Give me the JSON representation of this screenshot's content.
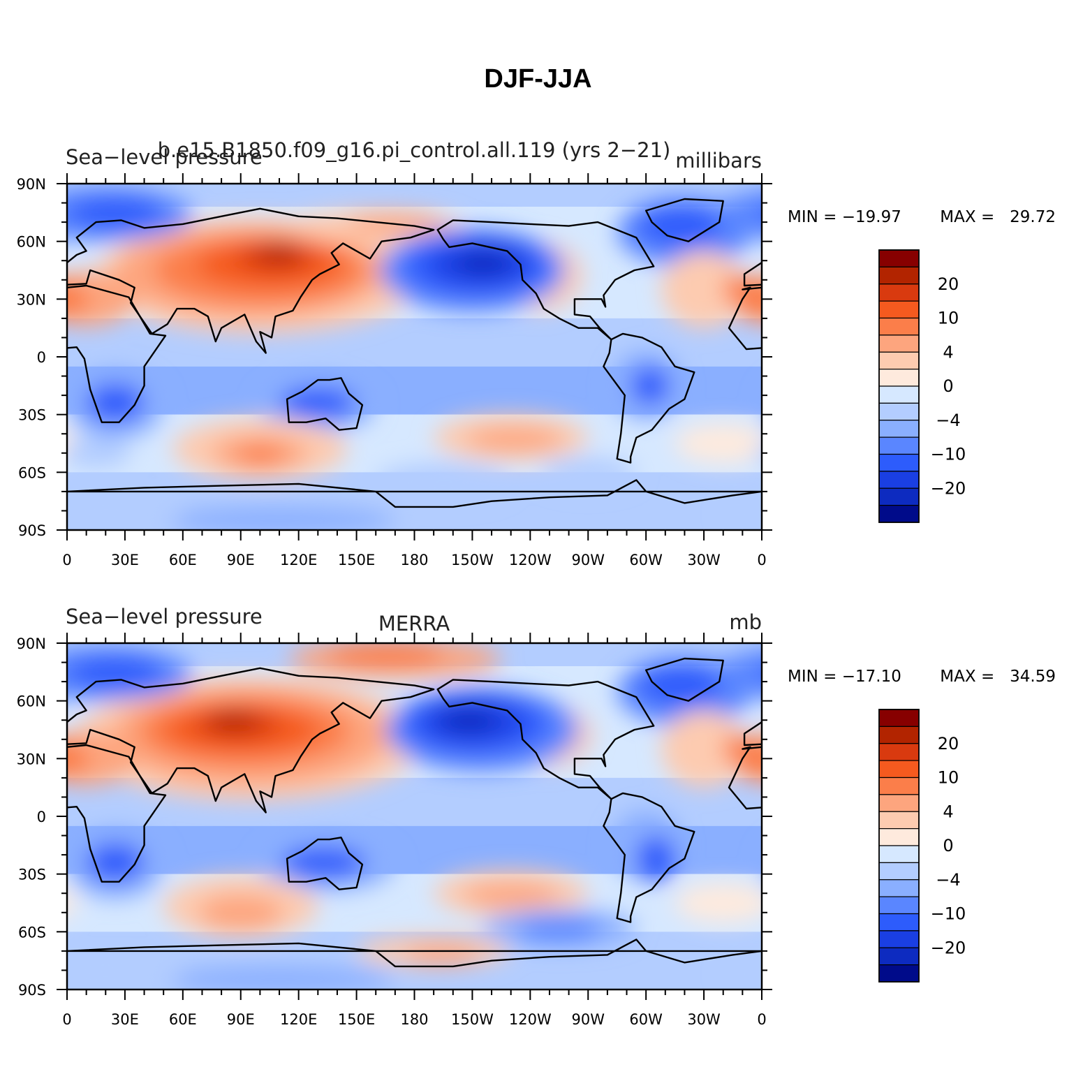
{
  "title": "DJF-JJA",
  "lat_ticks": [
    "90N",
    "60N",
    "30N",
    "0",
    "30S",
    "60S",
    "90S"
  ],
  "lon_ticks": [
    "0",
    "30E",
    "60E",
    "90E",
    "120E",
    "150E",
    "180",
    "150W",
    "120W",
    "90W",
    "60W",
    "30W",
    "0"
  ],
  "colorbar": {
    "labels": [
      "20",
      "10",
      "4",
      "0",
      "−4",
      "−10",
      "−20"
    ],
    "colors": [
      "#870000",
      "#b22400",
      "#d93a0f",
      "#f55a1f",
      "#fb7e4a",
      "#fda57e",
      "#fdcbb0",
      "#feeadd",
      "#d6e8ff",
      "#b3cdff",
      "#8aafff",
      "#5a86ff",
      "#2d5cfc",
      "#1a3fe3",
      "#0d2bc0",
      "#000b8a"
    ]
  },
  "panels": [
    {
      "left_title": "Sea−level pressure",
      "center_title": "b.e15.B1850.f09_g16.pi_control.all.119 (yrs 2−21)",
      "units": "millibars",
      "min_label": "MIN = −19.97",
      "max_label": "MAX =   29.72"
    },
    {
      "left_title": "Sea−level pressure",
      "center_title": "MERRA",
      "units": "mb",
      "min_label": "MIN = −17.10",
      "max_label": "MAX =   34.59"
    }
  ]
}
